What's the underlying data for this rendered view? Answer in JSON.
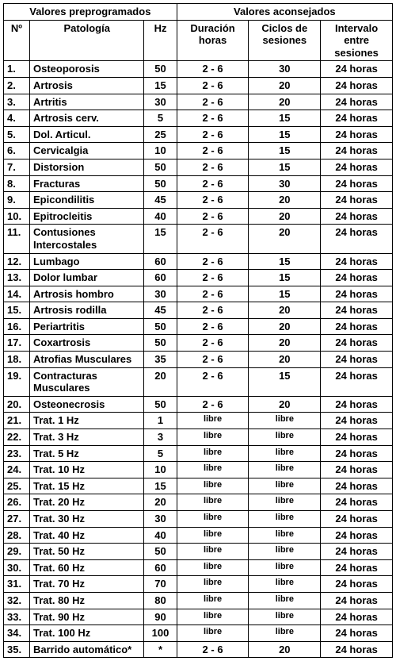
{
  "headers": {
    "group_prepro": "Valores preprogramados",
    "group_acon": "Valores aconsejados",
    "num": "Nº",
    "patologia": "Patología",
    "hz": "Hz",
    "duracion": "Duración horas",
    "ciclos": "Ciclos de sesiones",
    "intervalo": "Intervalo entre sesiones"
  },
  "rows": [
    {
      "n": "1.",
      "pat": "Osteoporosis",
      "hz": "50",
      "dur": "2 - 6",
      "cic": "30",
      "int": "24 horas"
    },
    {
      "n": "2.",
      "pat": "Artrosis",
      "hz": "15",
      "dur": "2 - 6",
      "cic": "20",
      "int": "24 horas"
    },
    {
      "n": "3.",
      "pat": "Artritis",
      "hz": "30",
      "dur": "2 - 6",
      "cic": "20",
      "int": "24 horas"
    },
    {
      "n": "4.",
      "pat": "Artrosis cerv.",
      "hz": "5",
      "dur": "2 - 6",
      "cic": "15",
      "int": "24 horas"
    },
    {
      "n": "5.",
      "pat": "Dol. Articul.",
      "hz": "25",
      "dur": "2 - 6",
      "cic": "15",
      "int": "24 horas"
    },
    {
      "n": "6.",
      "pat": "Cervicalgia",
      "hz": "10",
      "dur": "2 - 6",
      "cic": "15",
      "int": "24 horas"
    },
    {
      "n": "7.",
      "pat": "Distorsion",
      "hz": "50",
      "dur": "2 - 6",
      "cic": "15",
      "int": "24 horas"
    },
    {
      "n": "8.",
      "pat": "Fracturas",
      "hz": "50",
      "dur": "2 - 6",
      "cic": "30",
      "int": "24 horas"
    },
    {
      "n": "9.",
      "pat": "Epicondilitis",
      "hz": "45",
      "dur": "2 - 6",
      "cic": "20",
      "int": "24 horas"
    },
    {
      "n": "10.",
      "pat": "Epitrocleitis",
      "hz": "40",
      "dur": "2 - 6",
      "cic": "20",
      "int": "24 horas"
    },
    {
      "n": "11.",
      "pat": "Contusiones Intercostales",
      "hz": "15",
      "dur": "2 - 6",
      "cic": "20",
      "int": "24 horas"
    },
    {
      "n": "12.",
      "pat": "Lumbago",
      "hz": "60",
      "dur": "2 - 6",
      "cic": "15",
      "int": "24 horas"
    },
    {
      "n": "13.",
      "pat": "Dolor lumbar",
      "hz": "60",
      "dur": "2 - 6",
      "cic": "15",
      "int": "24 horas"
    },
    {
      "n": "14.",
      "pat": "Artrosis hombro",
      "hz": "30",
      "dur": "2 - 6",
      "cic": "15",
      "int": "24 horas"
    },
    {
      "n": "15.",
      "pat": "Artrosis rodilla",
      "hz": "45",
      "dur": "2 - 6",
      "cic": "20",
      "int": "24 horas"
    },
    {
      "n": "16.",
      "pat": "Periartritis",
      "hz": "50",
      "dur": "2 - 6",
      "cic": "20",
      "int": "24 horas"
    },
    {
      "n": "17.",
      "pat": "Coxartrosis",
      "hz": "50",
      "dur": "2 - 6",
      "cic": "20",
      "int": "24 horas"
    },
    {
      "n": "18.",
      "pat": "Atrofias Musculares",
      "hz": "35",
      "dur": "2 - 6",
      "cic": "20",
      "int": "24 horas"
    },
    {
      "n": "19.",
      "pat": "Contracturas Musculares",
      "hz": "20",
      "dur": "2 - 6",
      "cic": "15",
      "int": "24 horas"
    },
    {
      "n": "20.",
      "pat": "Osteonecrosis",
      "hz": "50",
      "dur": "2 - 6",
      "cic": "20",
      "int": "24 horas"
    },
    {
      "n": "21.",
      "pat": "Trat. 1 Hz",
      "hz": "1",
      "dur": "libre",
      "cic": "libre",
      "int": "24 horas",
      "libre": true
    },
    {
      "n": "22.",
      "pat": "Trat. 3 Hz",
      "hz": "3",
      "dur": "libre",
      "cic": "libre",
      "int": "24 horas",
      "libre": true
    },
    {
      "n": "23.",
      "pat": "Trat. 5 Hz",
      "hz": "5",
      "dur": "libre",
      "cic": "libre",
      "int": "24 horas",
      "libre": true
    },
    {
      "n": "24.",
      "pat": "Trat. 10 Hz",
      "hz": "10",
      "dur": "libre",
      "cic": "libre",
      "int": "24 horas",
      "libre": true
    },
    {
      "n": "25.",
      "pat": "Trat. 15 Hz",
      "hz": "15",
      "dur": "libre",
      "cic": "libre",
      "int": "24 horas",
      "libre": true
    },
    {
      "n": "26.",
      "pat": "Trat. 20 Hz",
      "hz": "20",
      "dur": "libre",
      "cic": "libre",
      "int": "24 horas",
      "libre": true
    },
    {
      "n": "27.",
      "pat": "Trat. 30 Hz",
      "hz": "30",
      "dur": "libre",
      "cic": "libre",
      "int": "24 horas",
      "libre": true
    },
    {
      "n": "28.",
      "pat": "Trat. 40 Hz",
      "hz": "40",
      "dur": "libre",
      "cic": "libre",
      "int": "24 horas",
      "libre": true
    },
    {
      "n": "29.",
      "pat": "Trat. 50 Hz",
      "hz": "50",
      "dur": "libre",
      "cic": "libre",
      "int": "24 horas",
      "libre": true
    },
    {
      "n": "30.",
      "pat": "Trat. 60 Hz",
      "hz": "60",
      "dur": "libre",
      "cic": "libre",
      "int": "24 horas",
      "libre": true
    },
    {
      "n": "31.",
      "pat": "Trat. 70 Hz",
      "hz": "70",
      "dur": "libre",
      "cic": "libre",
      "int": "24 horas",
      "libre": true
    },
    {
      "n": "32.",
      "pat": "Trat. 80 Hz",
      "hz": "80",
      "dur": "libre",
      "cic": "libre",
      "int": "24 horas",
      "libre": true
    },
    {
      "n": "33.",
      "pat": "Trat. 90 Hz",
      "hz": "90",
      "dur": "libre",
      "cic": "libre",
      "int": "24 horas",
      "libre": true
    },
    {
      "n": "34.",
      "pat": "Trat. 100 Hz",
      "hz": "100",
      "dur": "libre",
      "cic": "libre",
      "int": "24 horas",
      "libre": true
    },
    {
      "n": "35.",
      "pat": "Barrido automático*",
      "hz": "*",
      "dur": "2 - 6",
      "cic": "20",
      "int": "24 horas"
    }
  ]
}
